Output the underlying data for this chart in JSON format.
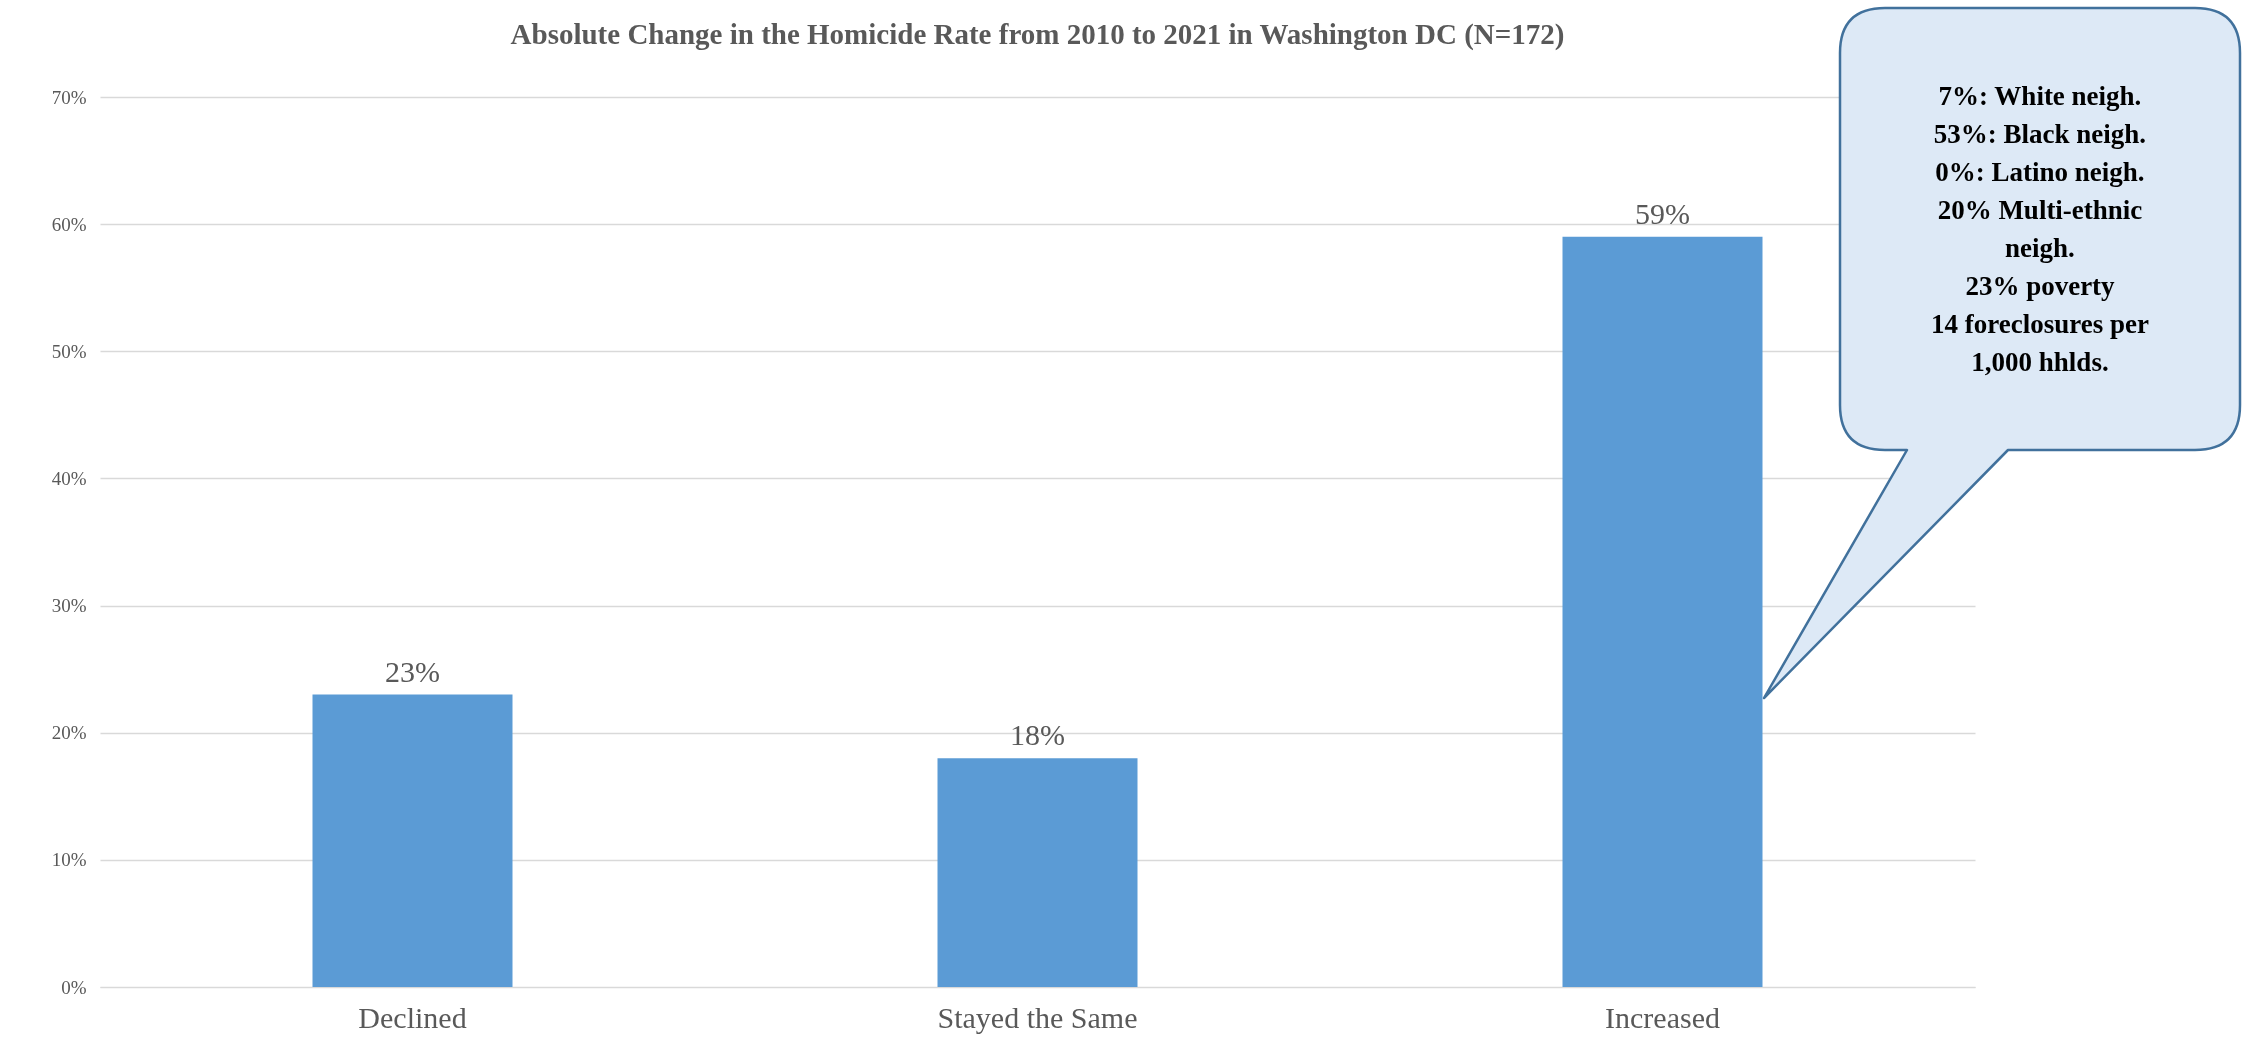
{
  "chart_data": {
    "type": "bar",
    "title": "Absolute Change in the Homicide Rate from 2010 to 2021 in Washington DC (N=172)",
    "categories": [
      "Declined",
      "Stayed the Same",
      "Increased"
    ],
    "values": [
      23,
      18,
      59
    ],
    "color": "#5b9bd5",
    "value_labels": [
      "23%",
      "18%",
      "59%"
    ],
    "ylim": [
      0,
      70
    ],
    "yticks": [
      {
        "value": 0,
        "label": "0%"
      },
      {
        "value": 10,
        "label": "10%"
      },
      {
        "value": 20,
        "label": "20%"
      },
      {
        "value": 30,
        "label": "30%"
      },
      {
        "value": 40,
        "label": "40%"
      },
      {
        "value": 50,
        "label": "50%"
      },
      {
        "value": 60,
        "label": "60%"
      },
      {
        "value": 70,
        "label": "70%"
      }
    ],
    "grid": "y",
    "annotations": [
      "7%: White neigh.\n53%: Black neigh.\n0%: Latino neigh.\n20% Multi-ethnic\nneigh.\n23% poverty\n14 foreclosures per\n1,000 hhlds."
    ]
  }
}
